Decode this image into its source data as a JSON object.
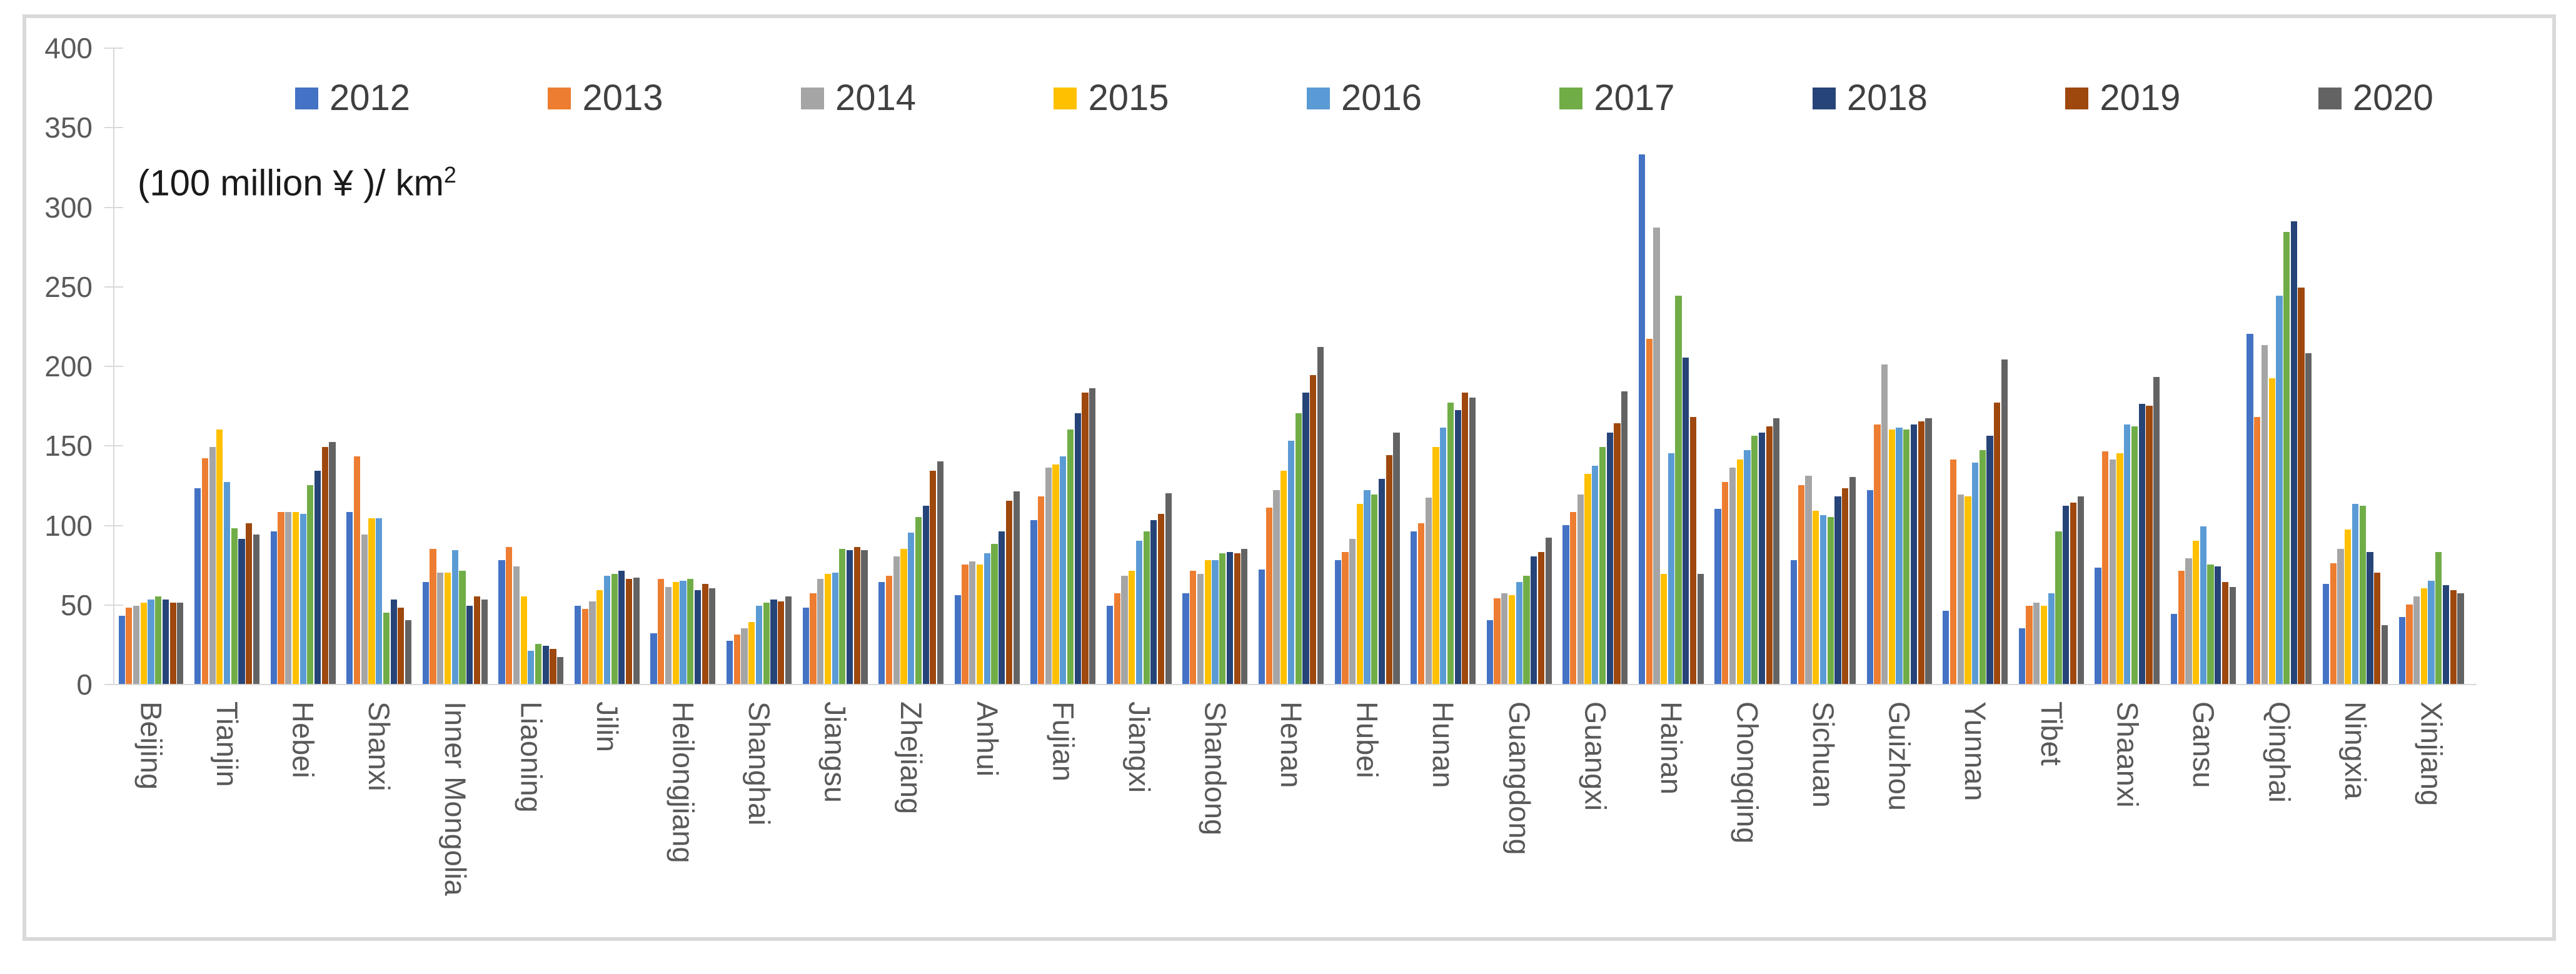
{
  "chart_data": {
    "type": "bar",
    "title": "",
    "unit_label_base": "(100 million ¥ )/ km",
    "unit_label_sup": "2",
    "xlabel": "",
    "ylabel": "(100 million ¥ )/ km²",
    "ylim": [
      0,
      400
    ],
    "ytick_step": 50,
    "yticks": [
      0,
      50,
      100,
      150,
      200,
      250,
      300,
      350,
      400
    ],
    "grid": false,
    "legend_position": "top",
    "bar_gap": "within-group small, nine bars per group",
    "axis_color": "#d9d9d9",
    "tick_label_color": "#595959",
    "legend_text_color": "#404040",
    "categories": [
      "Beijing",
      "Tianjin",
      "Hebei",
      "Shanxi",
      "Inner Mongolia",
      "Liaoning",
      "Jilin",
      "Heilongjiang",
      "Shanghai",
      "Jiangsu",
      "Zhejiang",
      "Anhui",
      "Fujian",
      "Jiangxi",
      "Shandong",
      "Henan",
      "Hubei",
      "Hunan",
      "Guangdong",
      "Guangxi",
      "Hainan",
      "Chongqing",
      "Sichuan",
      "Guizhou",
      "Yunnan",
      "Tibet",
      "Shaanxi",
      "Gansu",
      "Qinghai",
      "Ningxia",
      "Xinjiang"
    ],
    "series": [
      {
        "name": "2012",
        "color": "#4472C4",
        "values": [
          43,
          123,
          96,
          108,
          64,
          78,
          49,
          32,
          27,
          48,
          64,
          56,
          103,
          49,
          57,
          72,
          78,
          96,
          40,
          100,
          333,
          110,
          78,
          122,
          46,
          35,
          73,
          44,
          220,
          63,
          42
        ]
      },
      {
        "name": "2013",
        "color": "#ED7D31",
        "values": [
          48,
          142,
          108,
          143,
          85,
          86,
          47,
          66,
          31,
          57,
          68,
          75,
          118,
          57,
          71,
          111,
          83,
          101,
          54,
          108,
          217,
          127,
          125,
          163,
          141,
          49,
          146,
          71,
          168,
          76,
          50
        ]
      },
      {
        "name": "2014",
        "color": "#A5A5A5",
        "values": [
          49,
          149,
          108,
          94,
          70,
          74,
          52,
          61,
          35,
          66,
          80,
          77,
          136,
          68,
          69,
          122,
          91,
          117,
          57,
          119,
          287,
          136,
          131,
          201,
          119,
          51,
          141,
          79,
          213,
          85,
          55
        ]
      },
      {
        "name": "2015",
        "color": "#FFC000",
        "values": [
          51,
          160,
          108,
          104,
          70,
          55,
          59,
          64,
          39,
          69,
          85,
          75,
          138,
          71,
          78,
          134,
          113,
          149,
          56,
          132,
          69,
          141,
          109,
          160,
          118,
          49,
          145,
          90,
          192,
          97,
          60
        ]
      },
      {
        "name": "2016",
        "color": "#5B9BD5",
        "values": [
          53,
          127,
          107,
          104,
          84,
          21,
          68,
          65,
          49,
          70,
          95,
          82,
          143,
          90,
          78,
          153,
          122,
          161,
          64,
          137,
          145,
          147,
          106,
          161,
          139,
          57,
          163,
          99,
          244,
          113,
          65
        ]
      },
      {
        "name": "2017",
        "color": "#70AD47",
        "values": [
          55,
          98,
          125,
          45,
          71,
          25,
          69,
          66,
          51,
          85,
          105,
          88,
          160,
          96,
          82,
          170,
          119,
          177,
          68,
          149,
          244,
          156,
          105,
          160,
          147,
          96,
          162,
          75,
          284,
          112,
          83
        ]
      },
      {
        "name": "2018",
        "color": "#264478",
        "values": [
          53,
          91,
          134,
          53,
          49,
          24,
          71,
          59,
          53,
          84,
          112,
          96,
          170,
          103,
          83,
          183,
          129,
          172,
          80,
          158,
          205,
          158,
          118,
          163,
          156,
          112,
          176,
          74,
          291,
          83,
          62
        ]
      },
      {
        "name": "2019",
        "color": "#9E480E",
        "values": [
          51,
          101,
          149,
          48,
          55,
          22,
          66,
          63,
          52,
          86,
          134,
          115,
          183,
          107,
          82,
          194,
          144,
          183,
          83,
          164,
          168,
          162,
          123,
          165,
          177,
          114,
          175,
          64,
          249,
          70,
          59
        ]
      },
      {
        "name": "2020",
        "color": "#636363",
        "values": [
          51,
          94,
          152,
          40,
          53,
          17,
          67,
          60,
          55,
          84,
          140,
          121,
          186,
          120,
          85,
          212,
          158,
          180,
          92,
          184,
          69,
          167,
          130,
          167,
          204,
          118,
          193,
          61,
          208,
          37,
          57
        ]
      }
    ]
  }
}
